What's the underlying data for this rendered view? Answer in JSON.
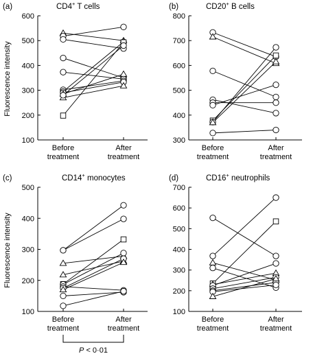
{
  "ylabel": "Fluorescence intensity",
  "pvalue": {
    "italic": "P",
    "rest": " < 0·01"
  },
  "chart_data": [
    {
      "type": "line",
      "panel": "(a)",
      "title": "CD4",
      "title_sup": "+",
      "title_rest": " T cells",
      "categories": [
        "Before treatment",
        "After treatment"
      ],
      "ylim": [
        100,
        600
      ],
      "yticks": [
        100,
        200,
        300,
        400,
        500,
        600
      ],
      "series": [
        {
          "marker": "triangle",
          "values": [
            530,
            500
          ]
        },
        {
          "marker": "circle",
          "values": [
            518,
            555
          ]
        },
        {
          "marker": "circle",
          "values": [
            505,
            468
          ]
        },
        {
          "marker": "circle",
          "values": [
            430,
            350
          ]
        },
        {
          "marker": "circle",
          "values": [
            373,
            345
          ]
        },
        {
          "marker": "circle",
          "values": [
            302,
            338
          ]
        },
        {
          "marker": "circle",
          "values": [
            295,
            495
          ]
        },
        {
          "marker": "circle",
          "values": [
            290,
            333
          ]
        },
        {
          "marker": "triangle",
          "values": [
            270,
            318
          ]
        },
        {
          "marker": "triangle",
          "values": [
            285,
            365
          ]
        },
        {
          "marker": "square",
          "values": [
            198,
            493
          ]
        },
        {
          "marker": "circle",
          "values": [
            280,
            480
          ]
        }
      ]
    },
    {
      "type": "line",
      "panel": "(b)",
      "title": "CD20",
      "title_sup": "+",
      "title_rest": " B cells",
      "categories": [
        "Before treatment",
        "After treatment"
      ],
      "ylim": [
        300,
        800
      ],
      "yticks": [
        300,
        400,
        500,
        600,
        700,
        800
      ],
      "series": [
        {
          "marker": "circle",
          "values": [
            733,
            635
          ]
        },
        {
          "marker": "triangle",
          "values": [
            715,
            608
          ]
        },
        {
          "marker": "circle",
          "values": [
            578,
            473
          ]
        },
        {
          "marker": "circle",
          "values": [
            462,
            408
          ]
        },
        {
          "marker": "circle",
          "values": [
            450,
            450
          ]
        },
        {
          "marker": "circle",
          "values": [
            440,
            522
          ]
        },
        {
          "marker": "square",
          "values": [
            378,
            640
          ]
        },
        {
          "marker": "circle",
          "values": [
            372,
            673
          ]
        },
        {
          "marker": "triangle",
          "values": [
            370,
            615
          ]
        },
        {
          "marker": "circle",
          "values": [
            328,
            340
          ]
        }
      ]
    },
    {
      "type": "line",
      "panel": "(c)",
      "title": "CD14",
      "title_sup": "+",
      "title_rest": " monocytes",
      "categories": [
        "Before treatment",
        "After treatment"
      ],
      "ylim": [
        100,
        500
      ],
      "yticks": [
        100,
        200,
        300,
        400,
        500
      ],
      "series": [
        {
          "marker": "circle",
          "values": [
            297,
            442
          ]
        },
        {
          "marker": "circle",
          "values": [
            297,
            398
          ]
        },
        {
          "marker": "triangle",
          "values": [
            255,
            278
          ]
        },
        {
          "marker": "triangle",
          "values": [
            218,
            262
          ]
        },
        {
          "marker": "square",
          "values": [
            188,
            332
          ]
        },
        {
          "marker": "circle",
          "values": [
            187,
            288
          ]
        },
        {
          "marker": "circle",
          "values": [
            180,
            168
          ]
        },
        {
          "marker": "circle",
          "values": [
            175,
            270
          ]
        },
        {
          "marker": "triangle",
          "values": [
            170,
            258
          ]
        },
        {
          "marker": "circle",
          "values": [
            150,
            162
          ]
        },
        {
          "marker": "circle",
          "values": [
            118,
            165
          ]
        }
      ]
    },
    {
      "type": "line",
      "panel": "(d)",
      "title": "CD16",
      "title_sup": "+",
      "title_rest": " neutrophils",
      "categories": [
        "Before treatment",
        "After treatment"
      ],
      "ylim": [
        100,
        700
      ],
      "yticks": [
        100,
        200,
        300,
        400,
        500,
        600,
        700
      ],
      "series": [
        {
          "marker": "circle",
          "values": [
            552,
            368
          ]
        },
        {
          "marker": "circle",
          "values": [
            368,
            650
          ]
        },
        {
          "marker": "triangle",
          "values": [
            335,
            252
          ]
        },
        {
          "marker": "circle",
          "values": [
            310,
            215
          ]
        },
        {
          "marker": "square",
          "values": [
            235,
            535
          ]
        },
        {
          "marker": "triangle",
          "values": [
            230,
            285
          ]
        },
        {
          "marker": "circle",
          "values": [
            225,
            332
          ]
        },
        {
          "marker": "circle",
          "values": [
            210,
            265
          ]
        },
        {
          "marker": "circle",
          "values": [
            200,
            240
          ]
        },
        {
          "marker": "circle",
          "values": [
            195,
            228
          ]
        },
        {
          "marker": "triangle",
          "values": [
            172,
            258
          ]
        }
      ]
    }
  ]
}
